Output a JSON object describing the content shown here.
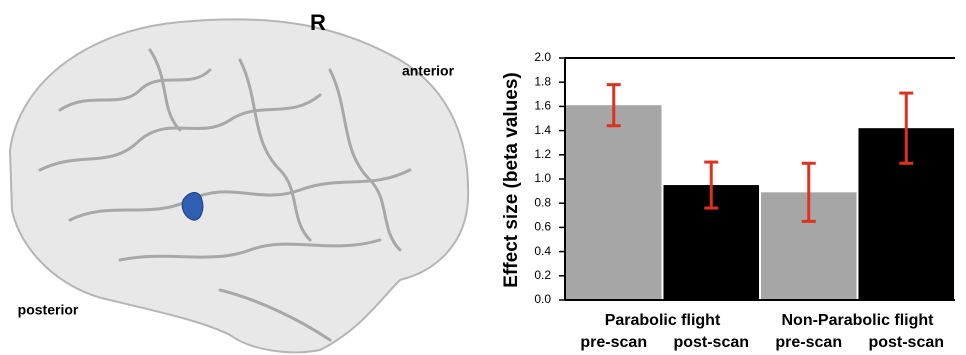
{
  "chart_data": {
    "type": "bar",
    "annotations": [
      "R",
      "anterior",
      "posterior"
    ],
    "y_label": "Effect size (beta values)",
    "groups": [
      "Parabolic flight",
      "Non-Parabolic flight"
    ],
    "categories": [
      "pre-scan",
      "post-scan",
      "pre-scan",
      "post-scan"
    ],
    "values": [
      1.61,
      0.95,
      0.89,
      1.42
    ],
    "errors": [
      0.17,
      0.19,
      0.24,
      0.29
    ],
    "colors": [
      "#a6a6a6",
      "#000000",
      "#a6a6a6",
      "#000000"
    ],
    "error_color": "#e0301e",
    "ylim": [
      0,
      2
    ],
    "yticks": [
      {
        "value": 0,
        "label": "0.0"
      },
      0.2,
      0.4,
      0.6,
      0.8,
      {
        "value": 1,
        "label": "1.0"
      },
      1.2,
      1.4,
      1.6,
      1.8,
      {
        "value": 2,
        "label": "2.0"
      }
    ]
  }
}
